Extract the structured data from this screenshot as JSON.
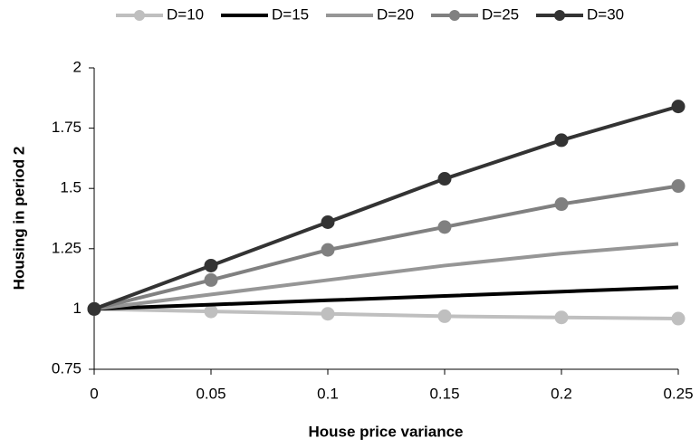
{
  "chart_data": {
    "type": "line",
    "x_label": "House price variance",
    "y_label": "Housing in period 2",
    "x": [
      0,
      0.05,
      0.1,
      0.15,
      0.2,
      0.25
    ],
    "series": [
      {
        "name": "D=10",
        "color": "#bfbfbf",
        "marker": true,
        "values": [
          1,
          0.99,
          0.98,
          0.97,
          0.965,
          0.96
        ]
      },
      {
        "name": "D=15",
        "color": "#000000",
        "marker": false,
        "values": [
          1,
          1.018,
          1.036,
          1.054,
          1.072,
          1.09
        ]
      },
      {
        "name": "D=20",
        "color": "#969696",
        "marker": false,
        "values": [
          1,
          1.06,
          1.12,
          1.18,
          1.23,
          1.27
        ]
      },
      {
        "name": "D=25",
        "color": "#808080",
        "marker": true,
        "values": [
          1,
          1.12,
          1.245,
          1.34,
          1.435,
          1.51
        ]
      },
      {
        "name": "D=30",
        "color": "#333333",
        "marker": true,
        "values": [
          1,
          1.18,
          1.36,
          1.54,
          1.7,
          1.84
        ]
      }
    ],
    "xlim": [
      0,
      0.25
    ],
    "xticks": [
      0,
      0.05,
      0.1,
      0.15,
      0.2,
      0.25
    ],
    "ylim": [
      0.75,
      2
    ],
    "yticks": [
      0.75,
      1,
      1.25,
      1.5,
      1.75,
      2
    ],
    "grid": false,
    "legend": "top"
  }
}
